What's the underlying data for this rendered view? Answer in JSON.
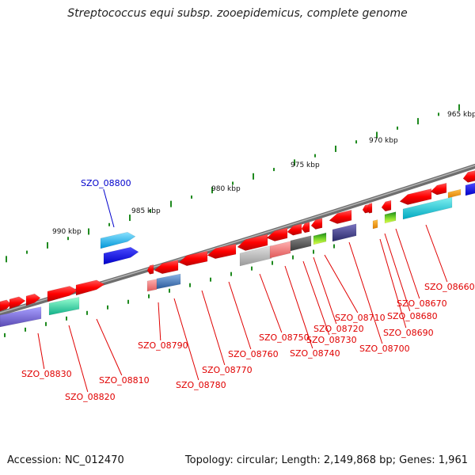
{
  "title": "Streptococcus equi subsp. zooepidemicus, complete genome",
  "footer": {
    "accession": "Accession: NC_012470",
    "summary": "Topology: circular; Length: 2,149,868 bp; Genes: 1,961"
  },
  "colors": {
    "backbone": "#7a7a7a",
    "tick": "#1f8a1f",
    "label_default": "#e00000",
    "label_highlight": "#0000cc",
    "gene_forward": "#ff0000"
  },
  "scale_labels": [
    "965 kbp",
    "970 kbp",
    "975 kbp",
    "980 kbp",
    "985 kbp",
    "990 kbp"
  ],
  "gene_labels": [
    {
      "id": "SZO_08660",
      "highlight": false
    },
    {
      "id": "SZO_08670",
      "highlight": false
    },
    {
      "id": "SZO_08680",
      "highlight": false
    },
    {
      "id": "SZO_08690",
      "highlight": false
    },
    {
      "id": "SZO_08700",
      "highlight": false
    },
    {
      "id": "SZO_08710",
      "highlight": false
    },
    {
      "id": "SZO_08720",
      "highlight": false
    },
    {
      "id": "SZO_08730",
      "highlight": false
    },
    {
      "id": "SZO_08740",
      "highlight": false
    },
    {
      "id": "SZO_08750",
      "highlight": false
    },
    {
      "id": "SZO_08760",
      "highlight": false
    },
    {
      "id": "SZO_08770",
      "highlight": false
    },
    {
      "id": "SZO_08780",
      "highlight": false
    },
    {
      "id": "SZO_08790",
      "highlight": false
    },
    {
      "id": "SZO_08800",
      "highlight": true
    },
    {
      "id": "SZO_08810",
      "highlight": false
    },
    {
      "id": "SZO_08820",
      "highlight": false
    },
    {
      "id": "SZO_08830",
      "highlight": false
    }
  ]
}
